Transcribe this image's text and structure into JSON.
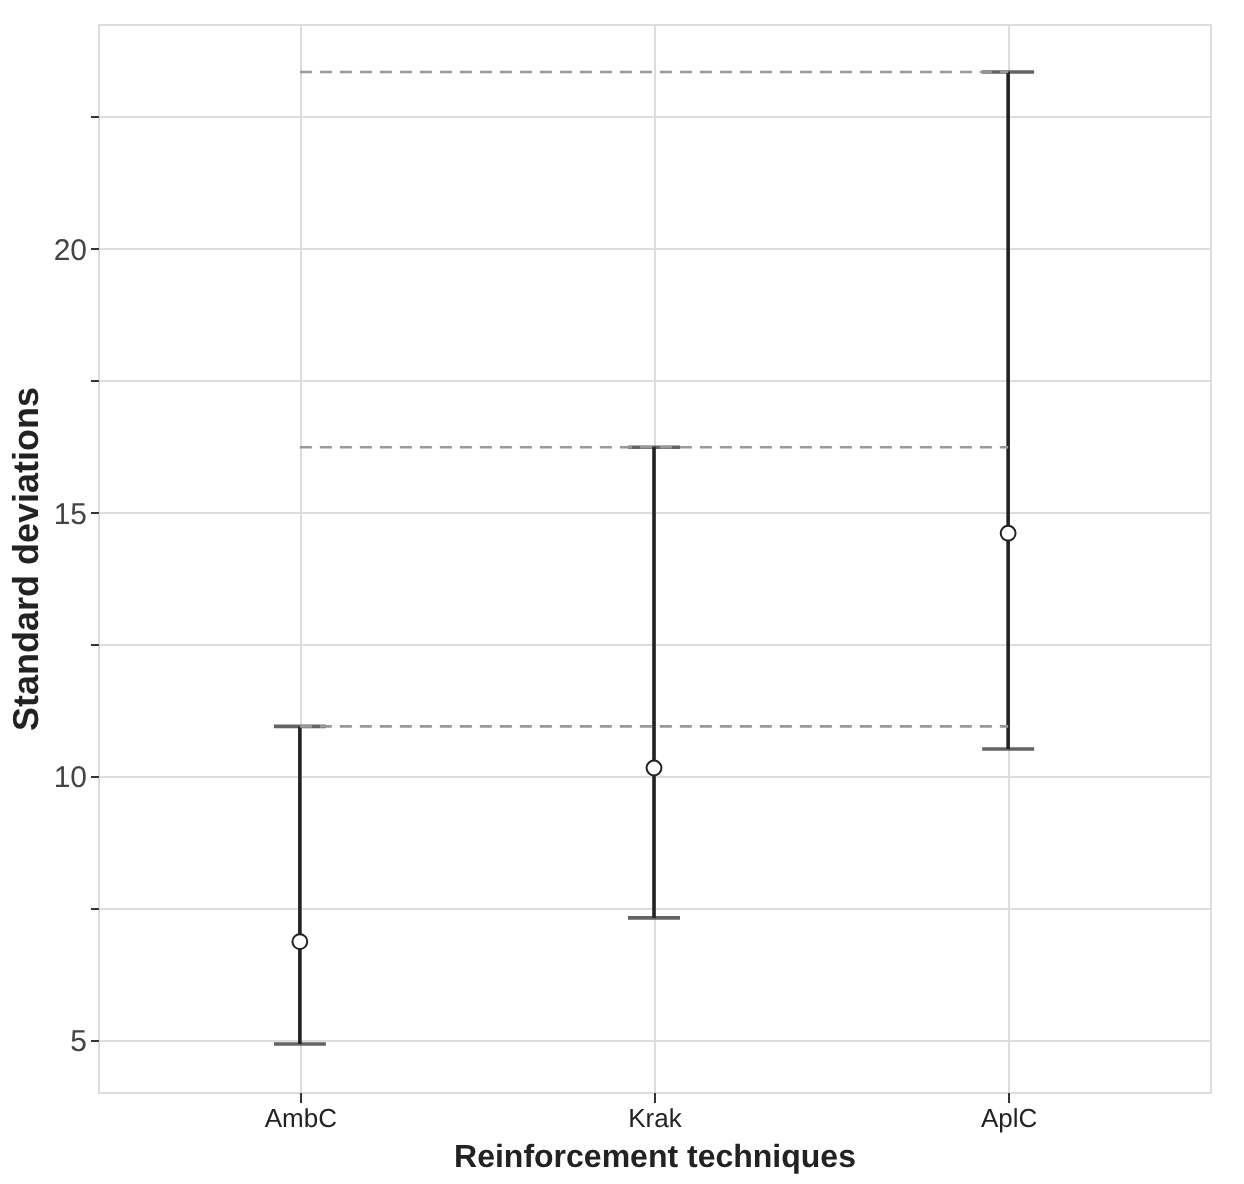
{
  "chart_data": {
    "type": "scatter",
    "xlabel": "Reinforcement techniques",
    "ylabel": "Standard deviations",
    "categories": [
      "AmbC",
      "Krak",
      "AplC"
    ],
    "values": [
      6.87,
      10.16,
      14.61
    ],
    "errors": [
      [
        4.93,
        10.95
      ],
      [
        7.32,
        16.24
      ],
      [
        10.52,
        23.35
      ]
    ],
    "color": "#ffffff",
    "ylim": [
      4.02,
      24.26
    ],
    "yticks": [
      5,
      {
        "value": 7.5,
        "label": null
      },
      10,
      {
        "value": 12.5,
        "label": null
      },
      15,
      {
        "value": 17.5,
        "label": null
      },
      20,
      {
        "value": 22.5,
        "label": null
      }
    ],
    "ref_lines": [
      {
        "axis": "y",
        "value": 10.95,
        "color": "#999999",
        "line_style": "dashed"
      },
      {
        "axis": "y",
        "value": 16.24,
        "color": "#999999",
        "line_style": "dashed"
      },
      {
        "axis": "y",
        "value": 23.35,
        "color": "#999999",
        "line_style": "dashed"
      }
    ],
    "marker": "circle",
    "grid": true
  }
}
